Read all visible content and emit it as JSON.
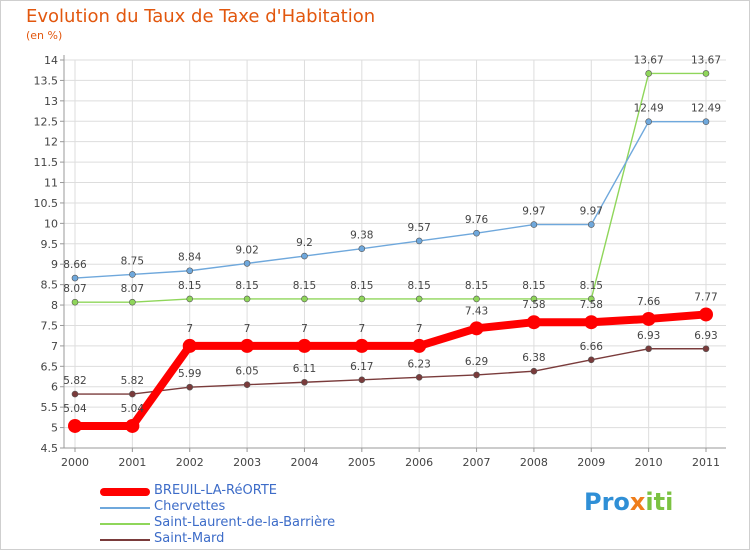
{
  "title": "Evolution du Taux de Taxe d'Habitation",
  "subtitle": "(en %)",
  "logo": "Proxiti",
  "chart_data": {
    "type": "line",
    "x": [
      "2000",
      "2001",
      "2002",
      "2003",
      "2004",
      "2005",
      "2006",
      "2007",
      "2008",
      "2009",
      "2010",
      "2011"
    ],
    "ylim": [
      4.5,
      14
    ],
    "yticks": [
      "4.5",
      "5",
      "5.5",
      "6",
      "6.5",
      "7",
      "7.5",
      "8",
      "8.5",
      "9",
      "9.5",
      "10",
      "10.5",
      "11",
      "11.5",
      "12",
      "12.5",
      "13",
      "13.5",
      "14"
    ],
    "grid": true,
    "legend": "bottom-left",
    "series": [
      {
        "name": "BREUIL-LA-RéORTE",
        "color": "#ff0000",
        "emphasis": true,
        "values": [
          5.04,
          5.04,
          7,
          7,
          7,
          7,
          7,
          7.43,
          7.58,
          7.58,
          7.66,
          7.77
        ],
        "labels": [
          "5.04",
          "5.04",
          "7",
          "7",
          "7",
          "7",
          "7",
          "7.43",
          "7.58",
          "7.58",
          "7.66",
          "7.77"
        ]
      },
      {
        "name": "Chervettes",
        "color": "#6fa8dc",
        "values": [
          8.66,
          8.75,
          8.84,
          9.02,
          9.2,
          9.38,
          9.57,
          9.76,
          9.97,
          9.97,
          12.49,
          12.49
        ],
        "labels": [
          "8.66",
          "8.75",
          "8.84",
          "9.02",
          "9.2",
          "9.38",
          "9.57",
          "9.76",
          "9.97",
          "9.97",
          "12.49",
          "12.49"
        ]
      },
      {
        "name": "Saint-Laurent-de-la-Barrière",
        "color": "#8fd65a",
        "values": [
          8.07,
          8.07,
          8.15,
          8.15,
          8.15,
          8.15,
          8.15,
          8.15,
          8.15,
          8.15,
          13.67,
          13.67
        ],
        "labels": [
          "8.07",
          "8.07",
          "8.15",
          "8.15",
          "8.15",
          "8.15",
          "8.15",
          "8.15",
          "8.15",
          "8.15",
          "13.67",
          "13.67"
        ]
      },
      {
        "name": "Saint-Mard",
        "color": "#7a3b3b",
        "values": [
          5.82,
          5.82,
          5.99,
          6.05,
          6.11,
          6.17,
          6.23,
          6.29,
          6.38,
          6.66,
          6.93,
          6.93
        ],
        "labels": [
          "5.82",
          "5.82",
          "5.99",
          "6.05",
          "6.11",
          "6.17",
          "6.23",
          "6.29",
          "6.38",
          "6.66",
          "6.93",
          "6.93"
        ]
      }
    ]
  }
}
